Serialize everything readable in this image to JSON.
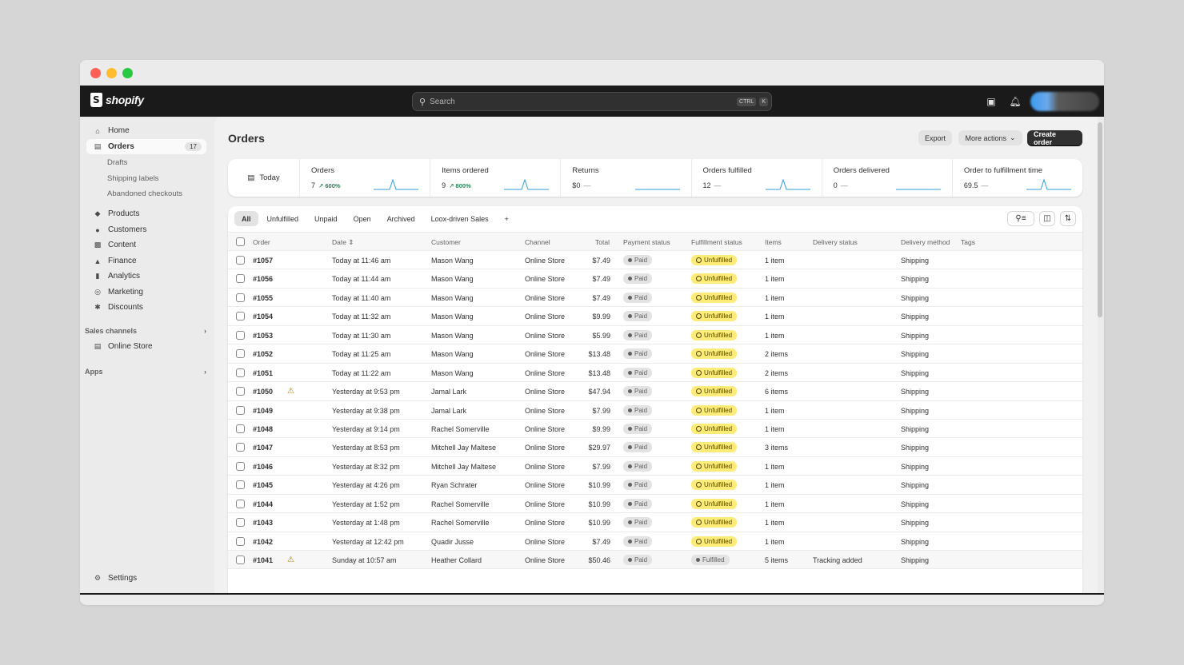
{
  "brand": "shopify",
  "search": {
    "placeholder": "Search",
    "key_ctrl": "CTRL",
    "key_k": "K"
  },
  "sidebar": {
    "home": "Home",
    "orders": "Orders",
    "orders_count": "17",
    "drafts": "Drafts",
    "shipping_labels": "Shipping labels",
    "abandoned": "Abandoned checkouts",
    "products": "Products",
    "customers": "Customers",
    "content": "Content",
    "finance": "Finance",
    "analytics": "Analytics",
    "marketing": "Marketing",
    "discounts": "Discounts",
    "sales_channels": "Sales channels",
    "online_store": "Online Store",
    "apps": "Apps",
    "settings": "Settings"
  },
  "page": {
    "title": "Orders",
    "export": "Export",
    "more_actions": "More actions",
    "create_order": "Create order"
  },
  "metrics": {
    "date": "Today",
    "items": [
      {
        "label": "Orders",
        "value": "7",
        "delta": "↗ 600%"
      },
      {
        "label": "Items ordered",
        "value": "9",
        "delta": "↗ 800%"
      },
      {
        "label": "Returns",
        "value": "$0",
        "dash": "—"
      },
      {
        "label": "Orders fulfilled",
        "value": "12",
        "dash": "—"
      },
      {
        "label": "Orders delivered",
        "value": "0",
        "dash": "—"
      },
      {
        "label": "Order to fulfillment time",
        "value": "69.5",
        "dash": "—"
      }
    ]
  },
  "tabs": [
    "All",
    "Unfulfilled",
    "Unpaid",
    "Open",
    "Archived",
    "Loox-driven Sales",
    "+"
  ],
  "columns": {
    "order": "Order",
    "date": "Date",
    "customer": "Customer",
    "channel": "Channel",
    "total": "Total",
    "payment": "Payment status",
    "fulfillment": "Fulfillment status",
    "items": "Items",
    "delivery_status": "Delivery status",
    "delivery_method": "Delivery method",
    "tags": "Tags"
  },
  "orders": [
    {
      "id": "#1057",
      "date": "Today at 11:46 am",
      "customer": "Mason Wang",
      "channel": "Online Store",
      "total": "$7.49",
      "payment": "Paid",
      "fulfillment": "Unfulfilled",
      "items": "1 item",
      "delivery_status": "",
      "method": "Shipping"
    },
    {
      "id": "#1056",
      "date": "Today at 11:44 am",
      "customer": "Mason Wang",
      "channel": "Online Store",
      "total": "$7.49",
      "payment": "Paid",
      "fulfillment": "Unfulfilled",
      "items": "1 item",
      "delivery_status": "",
      "method": "Shipping"
    },
    {
      "id": "#1055",
      "date": "Today at 11:40 am",
      "customer": "Mason Wang",
      "channel": "Online Store",
      "total": "$7.49",
      "payment": "Paid",
      "fulfillment": "Unfulfilled",
      "items": "1 item",
      "delivery_status": "",
      "method": "Shipping"
    },
    {
      "id": "#1054",
      "date": "Today at 11:32 am",
      "customer": "Mason Wang",
      "channel": "Online Store",
      "total": "$9.99",
      "payment": "Paid",
      "fulfillment": "Unfulfilled",
      "items": "1 item",
      "delivery_status": "",
      "method": "Shipping"
    },
    {
      "id": "#1053",
      "date": "Today at 11:30 am",
      "customer": "Mason Wang",
      "channel": "Online Store",
      "total": "$5.99",
      "payment": "Paid",
      "fulfillment": "Unfulfilled",
      "items": "1 item",
      "delivery_status": "",
      "method": "Shipping"
    },
    {
      "id": "#1052",
      "date": "Today at 11:25 am",
      "customer": "Mason Wang",
      "channel": "Online Store",
      "total": "$13.48",
      "payment": "Paid",
      "fulfillment": "Unfulfilled",
      "items": "2 items",
      "delivery_status": "",
      "method": "Shipping"
    },
    {
      "id": "#1051",
      "date": "Today at 11:22 am",
      "customer": "Mason Wang",
      "channel": "Online Store",
      "total": "$13.48",
      "payment": "Paid",
      "fulfillment": "Unfulfilled",
      "items": "2 items",
      "delivery_status": "",
      "method": "Shipping"
    },
    {
      "id": "#1050",
      "warning": true,
      "date": "Yesterday at 9:53 pm",
      "customer": "Jamal Lark",
      "channel": "Online Store",
      "total": "$47.94",
      "payment": "Paid",
      "fulfillment": "Unfulfilled",
      "items": "6 items",
      "delivery_status": "",
      "method": "Shipping"
    },
    {
      "id": "#1049",
      "date": "Yesterday at 9:38 pm",
      "customer": "Jamal Lark",
      "channel": "Online Store",
      "total": "$7.99",
      "payment": "Paid",
      "fulfillment": "Unfulfilled",
      "items": "1 item",
      "delivery_status": "",
      "method": "Shipping"
    },
    {
      "id": "#1048",
      "date": "Yesterday at 9:14 pm",
      "customer": "Rachel Somerville",
      "channel": "Online Store",
      "total": "$9.99",
      "payment": "Paid",
      "fulfillment": "Unfulfilled",
      "items": "1 item",
      "delivery_status": "",
      "method": "Shipping"
    },
    {
      "id": "#1047",
      "date": "Yesterday at 8:53 pm",
      "customer": "Mitchell Jay Maltese",
      "channel": "Online Store",
      "total": "$29.97",
      "payment": "Paid",
      "fulfillment": "Unfulfilled",
      "items": "3 items",
      "delivery_status": "",
      "method": "Shipping"
    },
    {
      "id": "#1046",
      "date": "Yesterday at 8:32 pm",
      "customer": "Mitchell Jay Maltese",
      "channel": "Online Store",
      "total": "$7.99",
      "payment": "Paid",
      "fulfillment": "Unfulfilled",
      "items": "1 item",
      "delivery_status": "",
      "method": "Shipping"
    },
    {
      "id": "#1045",
      "date": "Yesterday at 4:26 pm",
      "customer": "Ryan Schrater",
      "channel": "Online Store",
      "total": "$10.99",
      "payment": "Paid",
      "fulfillment": "Unfulfilled",
      "items": "1 item",
      "delivery_status": "",
      "method": "Shipping"
    },
    {
      "id": "#1044",
      "date": "Yesterday at 1:52 pm",
      "customer": "Rachel Somerville",
      "channel": "Online Store",
      "total": "$10.99",
      "payment": "Paid",
      "fulfillment": "Unfulfilled",
      "items": "1 item",
      "delivery_status": "",
      "method": "Shipping"
    },
    {
      "id": "#1043",
      "date": "Yesterday at 1:48 pm",
      "customer": "Rachel Somerville",
      "channel": "Online Store",
      "total": "$10.99",
      "payment": "Paid",
      "fulfillment": "Unfulfilled",
      "items": "1 item",
      "delivery_status": "",
      "method": "Shipping"
    },
    {
      "id": "#1042",
      "date": "Yesterday at 12:42 pm",
      "customer": "Quadir Jusse",
      "channel": "Online Store",
      "total": "$7.49",
      "payment": "Paid",
      "fulfillment": "Unfulfilled",
      "items": "1 item",
      "delivery_status": "",
      "method": "Shipping"
    },
    {
      "id": "#1041",
      "warning": true,
      "date": "Sunday at 10:57 am",
      "customer": "Heather Collard",
      "channel": "Online Store",
      "total": "$50.46",
      "payment": "Paid",
      "fulfillment": "Fulfilled",
      "items": "5 items",
      "delivery_status": "Tracking added",
      "method": "Shipping"
    }
  ],
  "colors": {
    "topbar": "#1a1a1a",
    "unfulfilled": "#ffeb78",
    "accent_green": "#29845a",
    "sparkline": "#2c9ed8"
  }
}
